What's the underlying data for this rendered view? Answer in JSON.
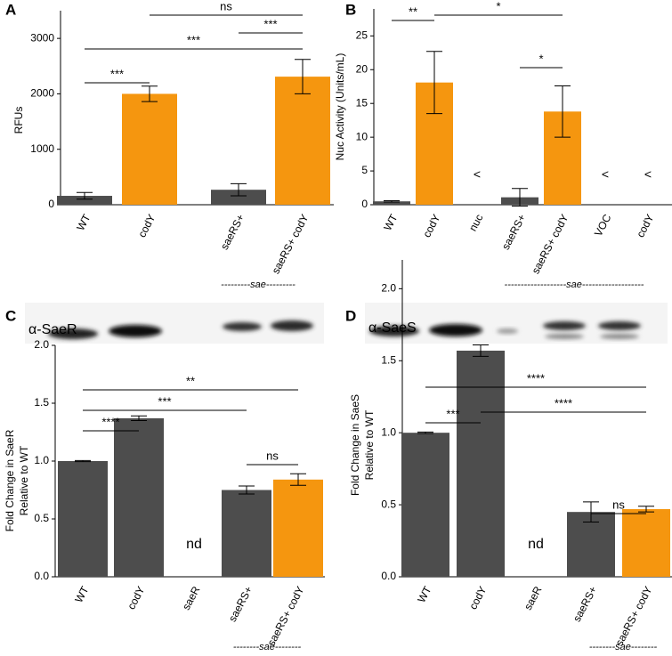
{
  "chart_data": [
    {
      "type": "bar",
      "panel_label": "A",
      "ylabel": [
        "RFUs"
      ],
      "categories": [
        "WT",
        "codY",
        null,
        "saeRS+",
        "saeRS+ codY"
      ],
      "values": [
        160,
        2000,
        null,
        270,
        2310
      ],
      "errors": [
        60,
        140,
        null,
        110,
        310
      ],
      "colors": [
        "#4d4d4d",
        "#f5960f",
        null,
        "#4d4d4d",
        "#f5960f"
      ],
      "ylim": [
        0,
        3500
      ],
      "yticks": [
        0,
        1000,
        2000,
        3000
      ],
      "significance": [
        "***",
        "***",
        "***",
        "ns"
      ],
      "group_label": "---------sae---------"
    },
    {
      "type": "bar",
      "panel_label": "B",
      "ylabel": [
        "Nuc Activity (Units/mL)"
      ],
      "categories": [
        "WT",
        "codY",
        "nuc",
        "saeRS+",
        "saeRS+ codY",
        "VOC",
        "codY"
      ],
      "values": [
        0.5,
        18.1,
        null,
        1.1,
        13.8,
        null,
        null
      ],
      "errors": [
        0.1,
        4.6,
        null,
        1.3,
        3.8,
        null,
        null
      ],
      "value_labels": [
        null,
        null,
        "<",
        null,
        null,
        "<",
        "<"
      ],
      "colors": [
        "#4d4d4d",
        "#f5960f",
        null,
        "#4d4d4d",
        "#f5960f",
        null,
        null
      ],
      "ylim": [
        0,
        29
      ],
      "yticks": [
        0,
        5,
        10,
        15,
        20,
        25
      ],
      "significance": [
        "**",
        "*",
        "*"
      ],
      "group_label": "-------------------sae-------------------"
    },
    {
      "type": "bar",
      "panel_label": "C",
      "blot_label": "α-SaeR",
      "ylabel": [
        "Fold Change in SaeR",
        "Relative to WT"
      ],
      "categories": [
        "WT",
        "codY",
        "saeR",
        "saeRS+",
        "saeRS+ codY"
      ],
      "values": [
        1.0,
        1.37,
        null,
        0.75,
        0.84
      ],
      "errors": [
        0.005,
        0.02,
        null,
        0.035,
        0.05
      ],
      "value_labels": [
        null,
        null,
        "nd",
        null,
        null
      ],
      "colors": [
        "#4d4d4d",
        "#4d4d4d",
        null,
        "#4d4d4d",
        "#f5960f"
      ],
      "ylim": [
        0,
        2.0
      ],
      "yticks": [
        {
          "value": 0,
          "label": "0.0"
        },
        {
          "value": 0.5,
          "label": "0.5"
        },
        {
          "value": 1,
          "label": "1.0"
        },
        {
          "value": 1.5,
          "label": "1.5"
        },
        {
          "value": 2,
          "label": "2.0"
        }
      ],
      "significance": [
        "**",
        "***",
        "****",
        "ns"
      ],
      "group_label": "--------sae--------"
    },
    {
      "type": "bar",
      "panel_label": "D",
      "blot_label": "α-SaeS",
      "ylabel": [
        "Fold Change in SaeS",
        "Relative to WT"
      ],
      "categories": [
        "WT",
        "codY",
        "saeR",
        "saeRS+",
        "saeRS+ codY"
      ],
      "values": [
        1.0,
        1.57,
        null,
        0.45,
        0.47
      ],
      "errors": [
        0.005,
        0.04,
        null,
        0.07,
        0.02
      ],
      "value_labels": [
        null,
        null,
        "nd",
        null,
        null
      ],
      "colors": [
        "#4d4d4d",
        "#4d4d4d",
        null,
        "#4d4d4d",
        "#f5960f"
      ],
      "ylim": [
        0,
        2.2
      ],
      "yticks": [
        {
          "value": 0,
          "label": "0.0"
        },
        {
          "value": 0.5,
          "label": "0.5"
        },
        {
          "value": 1,
          "label": "1.0"
        },
        {
          "value": 1.5,
          "label": "1.5"
        },
        {
          "value": 2,
          "label": "2.0"
        }
      ],
      "significance": [
        "****",
        "****",
        "***",
        "ns"
      ],
      "group_label": "--------sae--------"
    }
  ]
}
